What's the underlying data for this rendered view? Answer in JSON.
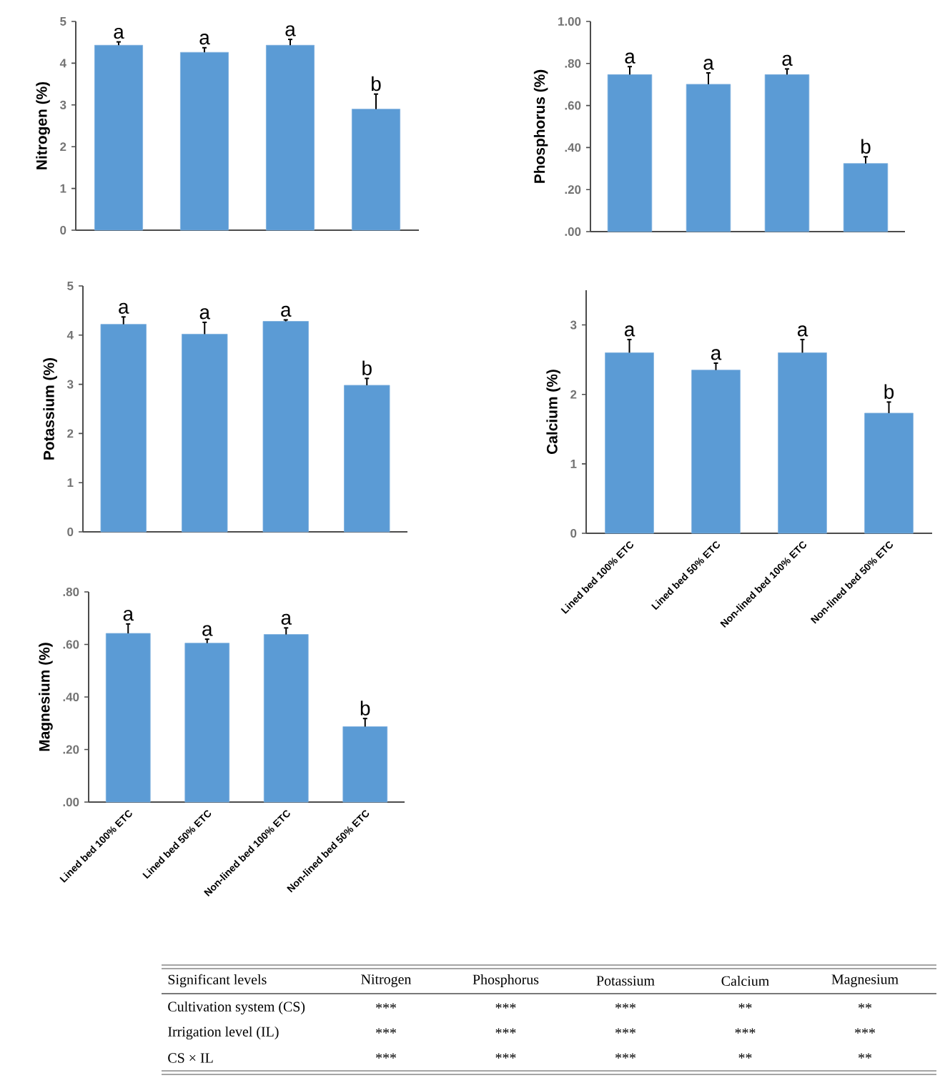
{
  "chart_data": [
    {
      "type": "bar",
      "ylabel": "Nitrogen (%)",
      "color": "#5b9bd5",
      "categories": [
        null,
        null,
        null,
        null
      ],
      "values": [
        4.43,
        4.26,
        4.43,
        2.9
      ],
      "errors": [
        0.08,
        0.11,
        0.14,
        0.36
      ],
      "ylim": [
        0,
        5
      ],
      "yticks": [
        0,
        1,
        2,
        3,
        4,
        5
      ],
      "annotations": [
        "a",
        "a",
        "a",
        "b"
      ]
    },
    {
      "type": "bar",
      "ylabel": "Phosphorus (%)",
      "color": "#5b9bd5",
      "categories": [
        null,
        null,
        null,
        null
      ],
      "values": [
        0.747,
        0.701,
        0.747,
        0.324
      ],
      "errors": [
        0.038,
        0.054,
        0.027,
        0.032
      ],
      "ylim": [
        0,
        1
      ],
      "yticks": [
        {
          "value": 0,
          "label": ".00"
        },
        {
          "value": 0.2,
          "label": ".20"
        },
        {
          "value": 0.4,
          "label": ".40"
        },
        {
          "value": 0.6,
          "label": ".60"
        },
        {
          "value": 0.8,
          "label": ".80"
        },
        {
          "value": 1,
          "label": "1.00"
        }
      ],
      "annotations": [
        "a",
        "a",
        "a",
        "b"
      ]
    },
    {
      "type": "bar",
      "ylabel": "Potassium (%)",
      "color": "#5b9bd5",
      "categories": [
        null,
        null,
        null,
        null
      ],
      "values": [
        4.22,
        4.02,
        4.28,
        2.98
      ],
      "errors": [
        0.15,
        0.24,
        0.03,
        0.14
      ],
      "ylim": [
        0,
        5
      ],
      "yticks": [
        0,
        1,
        2,
        3,
        4,
        5
      ],
      "annotations": [
        "a",
        "a",
        "a",
        "b"
      ]
    },
    {
      "type": "bar",
      "ylabel": "Calcium  (%)",
      "color": "#5b9bd5",
      "categories": [
        "Lined bed 100% ETC",
        "Lined bed 50% ETC",
        "Non-lined bed 100% ETC",
        "Non-lined bed 50% ETC"
      ],
      "values": [
        2.6,
        2.35,
        2.6,
        1.73
      ],
      "errors": [
        0.19,
        0.1,
        0.19,
        0.16
      ],
      "ylim": [
        0,
        3.5
      ],
      "yticks": [
        0,
        1,
        2,
        3
      ],
      "annotations": [
        "a",
        "a",
        "a",
        "b"
      ]
    },
    {
      "type": "bar",
      "ylabel": "Magnesium (%)",
      "color": "#5b9bd5",
      "categories": [
        "Lined bed 100% ETC",
        "Lined bed 50% ETC",
        "Non-lined bed 100% ETC",
        "Non-lined bed 50% ETC"
      ],
      "values": [
        0.642,
        0.605,
        0.638,
        0.287
      ],
      "errors": [
        0.036,
        0.015,
        0.025,
        0.031
      ],
      "ylim": [
        0,
        0.8
      ],
      "yticks": [
        {
          "value": 0,
          "label": ".00"
        },
        {
          "value": 0.2,
          "label": ".20"
        },
        {
          "value": 0.4,
          "label": ".40"
        },
        {
          "value": 0.6,
          "label": ".60"
        },
        {
          "value": 0.8,
          "label": ".80"
        }
      ],
      "annotations": [
        "a",
        "a",
        "a",
        "b"
      ]
    },
    {
      "type": "other",
      "categories": [
        "Significant levels",
        "Nitrogen",
        "Phosphorus",
        "Potassium",
        "Calcium",
        "Magnesium"
      ],
      "annotations": [
        "Cultivation system (CS)",
        "***",
        "***",
        "***",
        "**",
        "**",
        "Irrigation level (IL)",
        "***",
        "***",
        "***",
        "***",
        "***",
        "CS × IL",
        "***",
        "***",
        "***",
        "**",
        "**"
      ]
    }
  ]
}
